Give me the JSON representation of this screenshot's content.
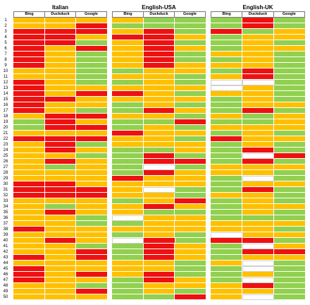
{
  "row_numbers": [
    "1",
    "2",
    "3",
    "4",
    "5",
    "6",
    "7",
    "8",
    "9",
    "10",
    "11",
    "12",
    "13",
    "14",
    "15",
    "16",
    "17",
    "18",
    "19",
    "20",
    "21",
    "22",
    "23",
    "24",
    "25",
    "26",
    "27",
    "28",
    "29",
    "30",
    "31",
    "32",
    "33",
    "34",
    "35",
    "36",
    "37",
    "38",
    "39",
    "40",
    "41",
    "42",
    "43",
    "44",
    "45",
    "46",
    "47",
    "48",
    "49",
    "50"
  ],
  "cell_marker": ".",
  "colors": {
    "R": "#ee1111",
    "O": "#ffc000",
    "G": "#92d050",
    "W": "#ffffff"
  },
  "panels": [
    {
      "title": "Italian",
      "columns": [
        "Bing",
        "Duckduck",
        "Google"
      ],
      "rows": [
        [
          "O",
          "O",
          "O"
        ],
        [
          "O",
          "O",
          "R"
        ],
        [
          "R",
          "R",
          "R"
        ],
        [
          "R",
          "R",
          "O"
        ],
        [
          "R",
          "R",
          "G"
        ],
        [
          "R",
          "O",
          "R"
        ],
        [
          "R",
          "O",
          "G"
        ],
        [
          "R",
          "O",
          "G"
        ],
        [
          "R",
          "O",
          "G"
        ],
        [
          "O",
          "O",
          "G"
        ],
        [
          "O",
          "O",
          "G"
        ],
        [
          "R",
          "O",
          "G"
        ],
        [
          "R",
          "O",
          "O"
        ],
        [
          "R",
          "O",
          "R"
        ],
        [
          "R",
          "R",
          "O"
        ],
        [
          "R",
          "O",
          "O"
        ],
        [
          "R",
          "O",
          "G"
        ],
        [
          "O",
          "R",
          "R"
        ],
        [
          "G",
          "R",
          "O"
        ],
        [
          "G",
          "R",
          "R"
        ],
        [
          "O",
          "O",
          "O"
        ],
        [
          "R",
          "R",
          "R"
        ],
        [
          "O",
          "R",
          "G"
        ],
        [
          "O",
          "R",
          "O"
        ],
        [
          "O",
          "O",
          "G"
        ],
        [
          "O",
          "R",
          "O"
        ],
        [
          "O",
          "G",
          "O"
        ],
        [
          "O",
          "O",
          "O"
        ],
        [
          "O",
          "O",
          "O"
        ],
        [
          "R",
          "R",
          "O"
        ],
        [
          "R",
          "R",
          "R"
        ],
        [
          "R",
          "R",
          "R"
        ],
        [
          "O",
          "O",
          "O"
        ],
        [
          "O",
          "G",
          "O"
        ],
        [
          "O",
          "R",
          "O"
        ],
        [
          "O",
          "O",
          "G"
        ],
        [
          "O",
          "O",
          "G"
        ],
        [
          "R",
          "O",
          "O"
        ],
        [
          "O",
          "O",
          "O"
        ],
        [
          "O",
          "R",
          "O"
        ],
        [
          "O",
          "O",
          "G"
        ],
        [
          "O",
          "O",
          "R"
        ],
        [
          "R",
          "O",
          "R"
        ],
        [
          "O",
          "O",
          "O"
        ],
        [
          "R",
          "O",
          "O"
        ],
        [
          "R",
          "O",
          "R"
        ],
        [
          "R",
          "O",
          "O"
        ],
        [
          "O",
          "O",
          "G"
        ],
        [
          "O",
          "O",
          "R"
        ],
        [
          "O",
          "O",
          "O"
        ]
      ]
    },
    {
      "title": "English-USA",
      "columns": [
        "Bing",
        "Duckduck",
        "Google"
      ],
      "rows": [
        [
          "O",
          "G",
          "G"
        ],
        [
          "G",
          "G",
          "G"
        ],
        [
          "O",
          "R",
          "G"
        ],
        [
          "R",
          "R",
          "O"
        ],
        [
          "O",
          "R",
          "G"
        ],
        [
          "O",
          "R",
          "O"
        ],
        [
          "O",
          "R",
          "G"
        ],
        [
          "O",
          "R",
          "G"
        ],
        [
          "O",
          "R",
          "O"
        ],
        [
          "G",
          "O",
          "O"
        ],
        [
          "O",
          "O",
          "G"
        ],
        [
          "G",
          "O",
          "G"
        ],
        [
          "O",
          "O",
          "O"
        ],
        [
          "R",
          "O",
          "G"
        ],
        [
          "O",
          "O",
          "O"
        ],
        [
          "G",
          "O",
          "G"
        ],
        [
          "G",
          "R",
          "O"
        ],
        [
          "O",
          "O",
          "G"
        ],
        [
          "G",
          "G",
          "R"
        ],
        [
          "G",
          "O",
          "G"
        ],
        [
          "R",
          "O",
          "O"
        ],
        [
          "O",
          "O",
          "G"
        ],
        [
          "O",
          "O",
          "O"
        ],
        [
          "G",
          "G",
          "O"
        ],
        [
          "G",
          "R",
          "G"
        ],
        [
          "G",
          "R",
          "R"
        ],
        [
          "G",
          "W",
          "G"
        ],
        [
          "G",
          "R",
          "O"
        ],
        [
          "R",
          "O",
          "O"
        ],
        [
          "O",
          "O",
          "O"
        ],
        [
          "O",
          "W",
          "G"
        ],
        [
          "O",
          "O",
          "G"
        ],
        [
          "G",
          "O",
          "R"
        ],
        [
          "O",
          "R",
          "O"
        ],
        [
          "O",
          "G",
          "G"
        ],
        [
          "W",
          "O",
          "O"
        ],
        [
          "G",
          "O",
          "O"
        ],
        [
          "O",
          "O",
          "O"
        ],
        [
          "G",
          "O",
          "G"
        ],
        [
          "W",
          "R",
          "G"
        ],
        [
          "G",
          "R",
          "O"
        ],
        [
          "G",
          "R",
          "O"
        ],
        [
          "G",
          "R",
          "O"
        ],
        [
          "O",
          "O",
          "G"
        ],
        [
          "O",
          "O",
          "G"
        ],
        [
          "O",
          "R",
          "G"
        ],
        [
          "G",
          "R",
          "O"
        ],
        [
          "G",
          "O",
          "O"
        ],
        [
          "G",
          "O",
          "G"
        ],
        [
          "G",
          "G",
          "R"
        ]
      ]
    },
    {
      "title": "English-UK",
      "columns": [
        "Bing",
        "Duckduck",
        "Google"
      ],
      "rows": [
        [
          "G",
          "R",
          "G"
        ],
        [
          "G",
          "R",
          "G"
        ],
        [
          "R",
          "G",
          "O"
        ],
        [
          "G",
          "O",
          "O"
        ],
        [
          "G",
          "O",
          "G"
        ],
        [
          "G",
          "O",
          "O"
        ],
        [
          "O",
          "O",
          "G"
        ],
        [
          "G",
          "O",
          "G"
        ],
        [
          "O",
          "O",
          "G"
        ],
        [
          "G",
          "R",
          "G"
        ],
        [
          "O",
          "R",
          "G"
        ],
        [
          "W",
          "W",
          "G"
        ],
        [
          "W",
          "O",
          "G"
        ],
        [
          "O",
          "O",
          "G"
        ],
        [
          "G",
          "O",
          "G"
        ],
        [
          "G",
          "O",
          "O"
        ],
        [
          "G",
          "R",
          "G"
        ],
        [
          "O",
          "G",
          "O"
        ],
        [
          "G",
          "G",
          "O"
        ],
        [
          "O",
          "O",
          "O"
        ],
        [
          "G",
          "O",
          "G"
        ],
        [
          "R",
          "O",
          "O"
        ],
        [
          "G",
          "O",
          "G"
        ],
        [
          "G",
          "R",
          "G"
        ],
        [
          "G",
          "W",
          "R"
        ],
        [
          "G",
          "R",
          "G"
        ],
        [
          "O",
          "O",
          "O"
        ],
        [
          "O",
          "O",
          "G"
        ],
        [
          "G",
          "W",
          "G"
        ],
        [
          "G",
          "O",
          "O"
        ],
        [
          "G",
          "R",
          "G"
        ],
        [
          "O",
          "O",
          "G"
        ],
        [
          "G",
          "O",
          "G"
        ],
        [
          "G",
          "O",
          "O"
        ],
        [
          "G",
          "O",
          "G"
        ],
        [
          "G",
          "G",
          "G"
        ],
        [
          "O",
          "O",
          "O"
        ],
        [
          "O",
          "O",
          "G"
        ],
        [
          "W",
          "O",
          "O"
        ],
        [
          "R",
          "R",
          "G"
        ],
        [
          "G",
          "W",
          "O"
        ],
        [
          "G",
          "R",
          "R"
        ],
        [
          "G",
          "O",
          "O"
        ],
        [
          "O",
          "W",
          "G"
        ],
        [
          "G",
          "W",
          "G"
        ],
        [
          "G",
          "O",
          "G"
        ],
        [
          "G",
          "W",
          "G"
        ],
        [
          "O",
          "R",
          "G"
        ],
        [
          "O",
          "O",
          "G"
        ],
        [
          "O",
          "W",
          "G"
        ]
      ]
    }
  ]
}
